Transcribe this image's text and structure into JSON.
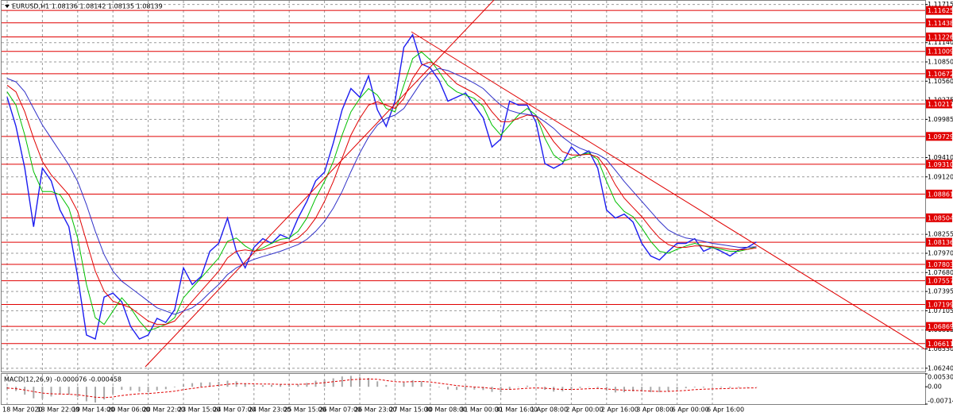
{
  "chart_data": [
    {
      "type": "line",
      "title": "EURUSD,H1  1.08136 1.08142 1.08135 1.08139",
      "categories": [
        "18 Mar 2020",
        null,
        null,
        null,
        "18 Mar 22:00",
        null,
        null,
        null,
        "19 Mar 14:00",
        null,
        null,
        null,
        "20 Mar 06:00",
        null,
        null,
        null,
        "20 Mar 22:00",
        null,
        null,
        null,
        "23 Mar 15:00",
        null,
        null,
        null,
        "24 Mar 07:00",
        null,
        null,
        null,
        "24 Mar 23:00",
        null,
        null,
        null,
        "25 Mar 15:00",
        null,
        null,
        null,
        "26 Mar 07:00",
        null,
        null,
        null,
        "26 Mar 23:00",
        null,
        null,
        null,
        "27 Mar 15:00",
        null,
        null,
        null,
        "30 Mar 08:00",
        null,
        null,
        null,
        "31 Mar 00:00",
        null,
        null,
        null,
        "31 Mar 16:00",
        null,
        null,
        null,
        "1 Apr 08:00",
        null,
        null,
        null,
        "2 Apr 00:00",
        null,
        null,
        null,
        "2 Apr 16:00",
        null,
        null,
        null,
        "3 Apr 08:00",
        null,
        null,
        null,
        "6 Apr 00:00",
        null,
        null,
        null,
        "6 Apr 16:00",
        null,
        null,
        null,
        null,
        null
      ],
      "series": [
        {
          "color": "#1c1cf0",
          "values": [
            1.1032,
            1.0988,
            1.0925,
            1.0837,
            1.0925,
            1.0906,
            1.0862,
            1.0837,
            1.0762,
            1.0674,
            1.0668,
            1.0731,
            1.0737,
            1.0724,
            1.0687,
            1.0668,
            1.0674,
            1.0699,
            1.0693,
            1.0712,
            1.0775,
            1.075,
            1.0762,
            1.08,
            1.0812,
            1.085,
            1.08,
            1.0775,
            1.0806,
            1.0819,
            1.0812,
            1.0825,
            1.0819,
            1.085,
            1.0875,
            1.0906,
            1.0919,
            1.0963,
            1.1013,
            1.1045,
            1.1032,
            1.1064,
            1.1013,
            1.0988,
            1.1026,
            1.1107,
            1.1126,
            1.1082,
            1.1076,
            1.1057,
            1.1026,
            1.1032,
            1.1038,
            1.102,
            1.1001,
            1.0957,
            1.0969,
            1.1026,
            1.102,
            1.102,
            1.0994,
            1.0932,
            1.0925,
            1.0932,
            1.0957,
            1.0944,
            1.0951,
            1.0925,
            1.0862,
            1.085,
            1.0856,
            1.0844,
            1.0812,
            1.0793,
            1.0787,
            1.08,
            1.0812,
            1.0812,
            1.0819,
            1.08,
            1.0806,
            1.08,
            1.0793,
            1.0802,
            1.0806,
            1.0814
          ]
        },
        {
          "color": "#00c000",
          "values": [
            1.104,
            1.102,
            1.0975,
            1.092,
            1.089,
            1.089,
            1.0885,
            1.0865,
            1.082,
            1.075,
            1.07,
            1.069,
            1.071,
            1.073,
            1.0715,
            1.0695,
            1.068,
            1.0685,
            1.069,
            1.07,
            1.073,
            1.0745,
            1.076,
            1.0775,
            1.079,
            1.0815,
            1.082,
            1.0808,
            1.08,
            1.0805,
            1.0812,
            1.0818,
            1.082,
            1.083,
            1.085,
            1.088,
            1.0905,
            1.0935,
            1.0975,
            1.101,
            1.103,
            1.1045,
            1.1035,
            1.1015,
            1.101,
            1.105,
            1.109,
            1.11,
            1.1088,
            1.107,
            1.105,
            1.104,
            1.1035,
            1.103,
            1.1018,
            1.099,
            1.0975,
            1.099,
            1.1005,
            1.1015,
            1.1005,
            1.097,
            1.0945,
            1.0935,
            1.094,
            1.0945,
            1.0948,
            1.0938,
            1.0905,
            1.0875,
            1.086,
            1.0852,
            1.0835,
            1.0815,
            1.08,
            1.0797,
            1.0803,
            1.0808,
            1.0812,
            1.0808,
            1.0805,
            1.0803,
            1.08,
            1.08,
            1.0803,
            1.0807
          ]
        },
        {
          "color": "#e00000",
          "values": [
            1.105,
            1.104,
            1.101,
            1.097,
            1.0935,
            1.0915,
            1.09,
            1.0885,
            1.086,
            1.0815,
            1.077,
            1.074,
            1.0725,
            1.072,
            1.0715,
            1.0705,
            1.0695,
            1.069,
            1.069,
            1.0695,
            1.071,
            1.0725,
            1.074,
            1.0755,
            1.077,
            1.079,
            1.08,
            1.0802,
            1.08,
            1.0802,
            1.0806,
            1.081,
            1.0814,
            1.082,
            1.0832,
            1.085,
            1.0875,
            1.0905,
            1.094,
            1.0975,
            1.1,
            1.102,
            1.1025,
            1.102,
            1.1015,
            1.103,
            1.106,
            1.108,
            1.1085,
            1.1078,
            1.1065,
            1.1052,
            1.1045,
            1.1038,
            1.1028,
            1.101,
            1.0995,
            1.0995,
            1.1,
            1.1005,
            1.1003,
            1.0985,
            1.0965,
            1.095,
            1.0945,
            1.0945,
            1.0946,
            1.0942,
            1.0925,
            1.09,
            1.088,
            1.0866,
            1.0852,
            1.0835,
            1.082,
            1.081,
            1.0806,
            1.0806,
            1.0808,
            1.0808,
            1.0807,
            1.0805,
            1.0803,
            1.0802,
            1.0803,
            1.0805
          ]
        },
        {
          "color": "#3030c8",
          "values": [
            1.106,
            1.1055,
            1.104,
            1.1015,
            1.099,
            1.097,
            1.095,
            1.093,
            1.0905,
            1.087,
            1.083,
            1.0795,
            1.077,
            1.0755,
            1.0745,
            1.0735,
            1.0725,
            1.0715,
            1.071,
            1.0705,
            1.071,
            1.0715,
            1.0725,
            1.0738,
            1.075,
            1.0765,
            1.0775,
            1.0782,
            1.0788,
            1.0792,
            1.0796,
            1.08,
            1.0805,
            1.081,
            1.0818,
            1.083,
            1.0845,
            1.0865,
            1.089,
            1.092,
            1.0948,
            1.0972,
            1.099,
            1.1,
            1.1005,
            1.1015,
            1.1035,
            1.1055,
            1.107,
            1.1075,
            1.1072,
            1.1066,
            1.106,
            1.1053,
            1.1045,
            1.1032,
            1.102,
            1.1012,
            1.1008,
            1.1006,
            1.1004,
            1.0995,
            1.0985,
            1.0972,
            1.0962,
            1.0955,
            1.095,
            1.0946,
            1.0938,
            1.0922,
            1.0905,
            1.089,
            1.0875,
            1.086,
            1.0845,
            1.0832,
            1.0825,
            1.082,
            1.0818,
            1.0815,
            1.0812,
            1.081,
            1.0808,
            1.0806,
            1.0806,
            1.0807
          ]
        }
      ],
      "ylim": [
        1.0619,
        1.1177
      ],
      "yticks": [
        1.11715,
        {
          "value": 1.1114,
          "label": "1.11140"
        },
        {
          "value": 1.1085,
          "label": "1.10850"
        },
        {
          "value": 1.1056,
          "label": "1.10560"
        },
        1.10275,
        1.09985,
        {
          "value": 1.0941,
          "label": "1.09410"
        },
        {
          "value": 1.0912,
          "label": "1.09120"
        },
        1.08255,
        {
          "value": 1.0797,
          "label": "1.07970"
        },
        {
          "value": 1.0768,
          "label": "1.07680"
        },
        1.07395,
        1.07105,
        1.06815,
        {
          "value": 1.0653,
          "label": "1.06530"
        },
        {
          "value": 1.0624,
          "label": "1.06240"
        }
      ],
      "levels": [
        1.11625,
        1.11438,
        1.11226,
        1.11009,
        1.10672,
        1.10217,
        1.09729,
        {
          "value": 1.0931,
          "label": "1.09310"
        },
        1.08861,
        1.08504,
        1.08136,
        1.07803,
        1.07557,
        1.07199,
        1.06869,
        1.06611
      ],
      "level_color": "#e00000",
      "grid": true
    },
    {
      "type": "bar",
      "title": "MACD(12,26,9) -0.000076 -0.000458",
      "series": [
        {
          "color": "#a8a8a8",
          "values": [
            -0.001,
            -0.00175,
            -0.00325,
            -0.00475,
            -0.005,
            -0.004,
            -0.00325,
            -0.00325,
            -0.00425,
            -0.006,
            -0.0065,
            -0.00525,
            -0.003,
            -0.00125,
            -0.0015,
            -0.002,
            -0.00225,
            -0.0015,
            -0.001,
            -0.00025,
            0.001,
            0.0015,
            0.00175,
            0.00185,
            0.002,
            0.0025,
            0.00225,
            0.0013,
            0.0006,
            0.00065,
            0.0008,
            0.0009,
            0.00075,
            0.001,
            0.0016,
            0.0025,
            0.003,
            0.0035,
            0.00425,
            0.0045,
            0.0041,
            0.00365,
            0.00225,
            0.00075,
            0.00025,
            0.00175,
            0.00275,
            0.00225,
            0.0009,
            -0.00025,
            -0.0011,
            -0.0013,
            -0.00125,
            -0.00115,
            -0.00135,
            -0.0021,
            -0.00225,
            -0.0011,
            -0.00015,
            0.00045,
            5e-05,
            -0.00125,
            -0.002,
            -0.00185,
            -0.0011,
            -0.0005,
            -0.0001,
            -0.0004,
            -0.00165,
            -0.00235,
            -0.00225,
            -0.0019,
            -0.002,
            -0.00225,
            -0.00225,
            -0.00175,
            -0.0011,
            -0.0006,
            -0.0003,
            -0.00035,
            -0.00035,
            -0.00035,
            -0.0004,
            -0.0003,
            -0.00015,
            -7.6e-05
          ]
        },
        {
          "type": "line",
          "color": "#e00000",
          "dashed": true,
          "values": [
            -0.0005,
            -0.0008,
            -0.0013,
            -0.002,
            -0.0026,
            -0.0029,
            -0.003,
            -0.0031,
            -0.0033,
            -0.0038,
            -0.0043,
            -0.0045,
            -0.0042,
            -0.0036,
            -0.0032,
            -0.0029,
            -0.0028,
            -0.0025,
            -0.0022,
            -0.0018,
            -0.0012,
            -0.0007,
            -0.0002,
            0.0002,
            0.0006,
            0.001,
            0.0013,
            0.0013,
            0.0012,
            0.0011,
            0.0011,
            0.001,
            0.001,
            0.001,
            0.0011,
            0.0014,
            0.0017,
            0.0021,
            0.0025,
            0.0029,
            0.0031,
            0.0032,
            0.0031,
            0.0026,
            0.0021,
            0.002,
            0.0021,
            0.0022,
            0.002,
            0.0015,
            0.001,
            0.0005,
            0.0002,
            -0.0001,
            -0.0003,
            -0.0007,
            -0.001,
            -0.0011,
            -0.0009,
            -0.0006,
            -0.0005,
            -0.0006,
            -0.0009,
            -0.0011,
            -0.0011,
            -0.001,
            -0.0008,
            -0.0007,
            -0.0009,
            -0.0012,
            -0.0014,
            -0.0015,
            -0.0016,
            -0.0018,
            -0.0019,
            -0.0019,
            -0.0017,
            -0.0015,
            -0.0012,
            -0.001,
            -0.0009,
            -0.0008,
            -0.0007,
            -0.0006,
            -0.0005,
            -0.000458
          ]
        }
      ],
      "ylim": [
        -0.007148,
        0.005305
      ],
      "yticks": [
        0.005305,
        {
          "value": 0,
          "label": "0.00"
        },
        -0.007148
      ]
    }
  ]
}
